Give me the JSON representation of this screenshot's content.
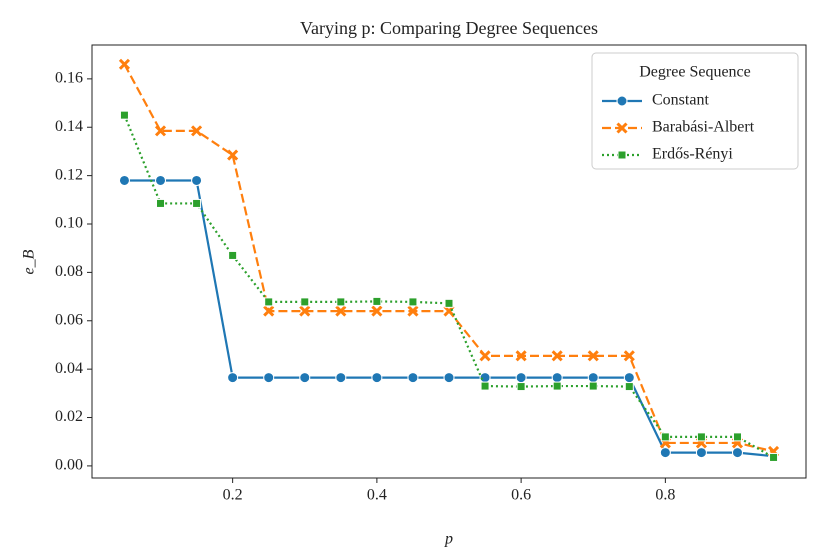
{
  "chart_data": {
    "type": "line",
    "title": "Varying p: Comparing Degree Sequences",
    "xlabel": "p",
    "ylabel": "e_B",
    "x": [
      0.05,
      0.1,
      0.15,
      0.2,
      0.25,
      0.3,
      0.35,
      0.4,
      0.45,
      0.5,
      0.55,
      0.6,
      0.65,
      0.7,
      0.75,
      0.8,
      0.85,
      0.9,
      0.95
    ],
    "series": [
      {
        "name": "Constant",
        "color": "#1f77b4",
        "dash": "solid",
        "marker": "circle",
        "values": [
          0.118,
          0.118,
          0.118,
          0.0365,
          0.0365,
          0.0365,
          0.0365,
          0.0365,
          0.0365,
          0.0365,
          0.0365,
          0.0365,
          0.0365,
          0.0365,
          0.0365,
          0.0055,
          0.0055,
          0.0055,
          0.004
        ]
      },
      {
        "name": "Barabási-Albert",
        "color": "#ff7f0e",
        "dash": "dashed",
        "marker": "x",
        "values": [
          0.166,
          0.1385,
          0.1385,
          0.1285,
          0.064,
          0.064,
          0.064,
          0.064,
          0.064,
          0.064,
          0.0455,
          0.0455,
          0.0455,
          0.0455,
          0.0455,
          0.0095,
          0.0095,
          0.0095,
          0.006
        ]
      },
      {
        "name": "Erdős-Rényi",
        "color": "#2ca02c",
        "dash": "dotted",
        "marker": "square",
        "values": [
          0.145,
          0.1085,
          0.1085,
          0.087,
          0.0678,
          0.0678,
          0.0678,
          0.068,
          0.0678,
          0.0672,
          0.033,
          0.0328,
          0.033,
          0.033,
          0.0328,
          0.012,
          0.012,
          0.012,
          0.0035
        ]
      }
    ],
    "legend_title": "Degree Sequence",
    "legend": "upper right",
    "xlim": [
      0.005,
      0.995
    ],
    "ylim": [
      -0.005,
      0.174
    ],
    "xticks": [
      0.2,
      0.4,
      0.6,
      0.8
    ],
    "yticks": [
      {
        "value": 0,
        "label": "0.00"
      },
      {
        "value": 0.02,
        "label": "0.02"
      },
      {
        "value": 0.04,
        "label": "0.04"
      },
      {
        "value": 0.06,
        "label": "0.06"
      },
      {
        "value": 0.08,
        "label": "0.08"
      },
      {
        "value": 0.1,
        "label": "0.10"
      },
      {
        "value": 0.12,
        "label": "0.12"
      },
      {
        "value": 0.14,
        "label": "0.14"
      },
      {
        "value": 0.16,
        "label": "0.16"
      }
    ]
  }
}
